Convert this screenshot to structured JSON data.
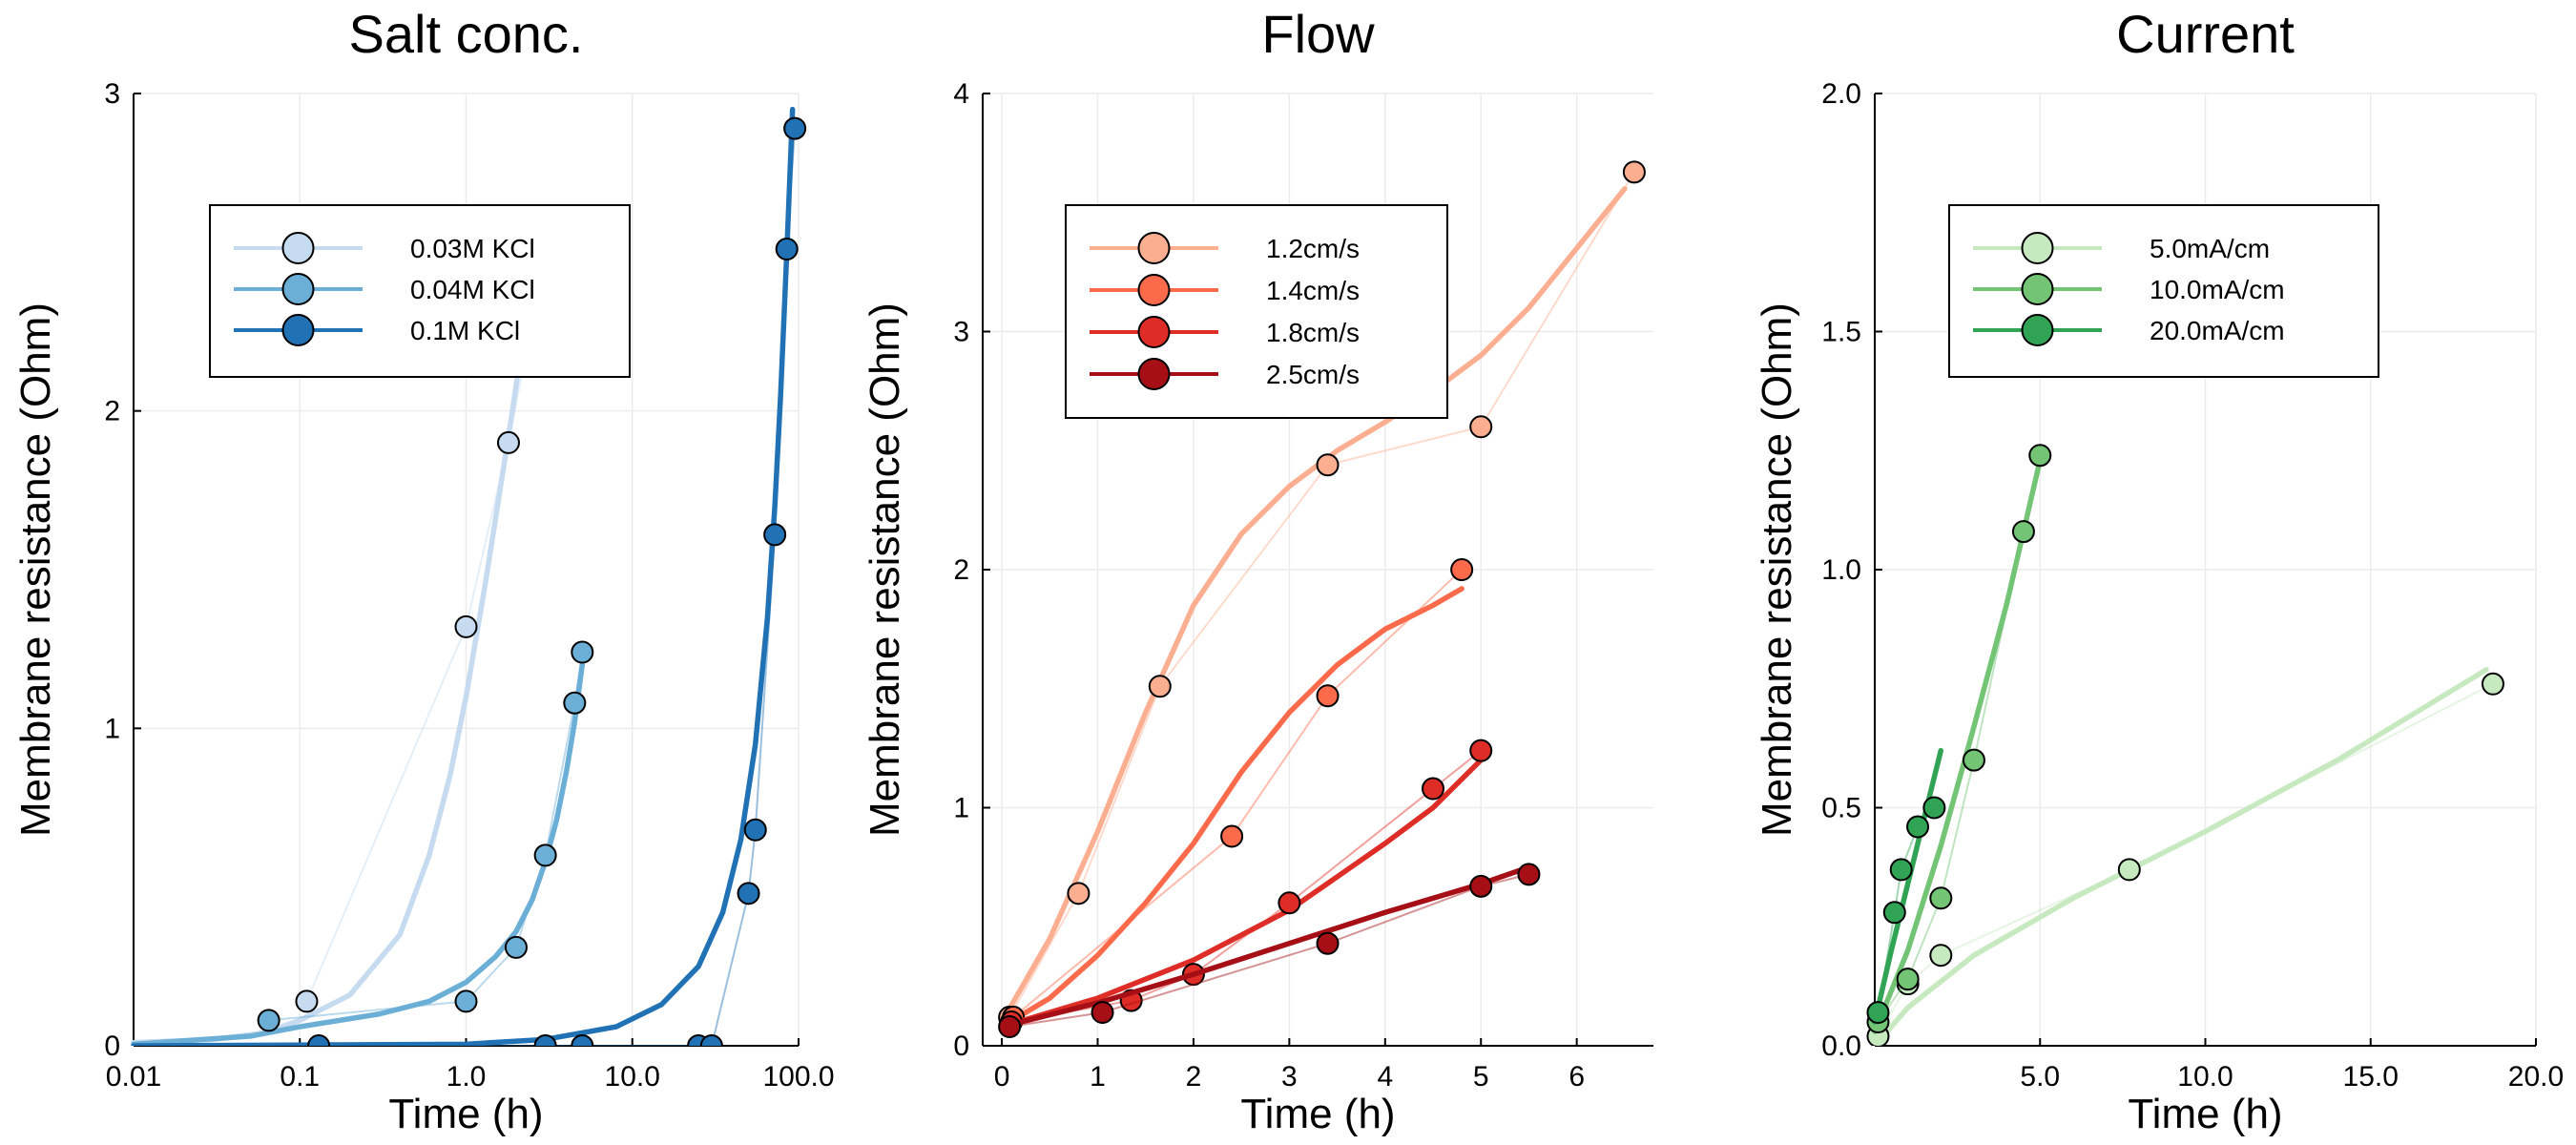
{
  "chart_data": [
    {
      "type": "scatter",
      "title": "Salt conc.",
      "xlabel": "Time (h)",
      "ylabel": "Membrane resistance (Ohm)",
      "xscale": "log",
      "xlim": [
        0.01,
        100
      ],
      "ylim": [
        0,
        3
      ],
      "xticks": [
        0.01,
        0.1,
        1,
        10,
        100
      ],
      "xtick_labels": [
        "0.01",
        "0.1",
        "1.0",
        "10.0",
        "100.0"
      ],
      "yticks": [
        0,
        1,
        2,
        3
      ],
      "ytick_labels": [
        "0",
        "1",
        "2",
        "3"
      ],
      "grid": true,
      "legend_position": "top-left",
      "series": [
        {
          "name": "0.03M KCl",
          "color": "#c6dbef",
          "points": [
            [
              0.11,
              0.14
            ],
            [
              1.0,
              1.32
            ],
            [
              1.8,
              1.9
            ],
            [
              3.0,
              2.5
            ]
          ],
          "fit": [
            [
              0.01,
              0.01
            ],
            [
              0.03,
              0.02
            ],
            [
              0.06,
              0.04
            ],
            [
              0.1,
              0.08
            ],
            [
              0.2,
              0.16
            ],
            [
              0.4,
              0.35
            ],
            [
              0.6,
              0.6
            ],
            [
              0.8,
              0.85
            ],
            [
              1.0,
              1.1
            ],
            [
              1.3,
              1.45
            ],
            [
              1.6,
              1.75
            ],
            [
              1.9,
              2.0
            ],
            [
              2.3,
              2.3
            ]
          ]
        },
        {
          "name": "0.04M KCl",
          "color": "#6baed6",
          "points": [
            [
              0.065,
              0.08
            ],
            [
              1.0,
              0.14
            ],
            [
              2.0,
              0.31
            ],
            [
              3.0,
              0.6
            ],
            [
              4.5,
              1.08
            ],
            [
              5.0,
              1.24
            ]
          ],
          "fit": [
            [
              0.01,
              0.005
            ],
            [
              0.05,
              0.03
            ],
            [
              0.1,
              0.06
            ],
            [
              0.3,
              0.1
            ],
            [
              0.6,
              0.14
            ],
            [
              1.0,
              0.2
            ],
            [
              1.5,
              0.28
            ],
            [
              2.0,
              0.36
            ],
            [
              2.5,
              0.46
            ],
            [
              3.0,
              0.58
            ],
            [
              3.5,
              0.71
            ],
            [
              4.0,
              0.86
            ],
            [
              4.5,
              1.02
            ],
            [
              5.0,
              1.2
            ]
          ]
        },
        {
          "name": "0.1M KCl",
          "color": "#2171b5",
          "points": [
            [
              0.13,
              0.0
            ],
            [
              3.0,
              0.0
            ],
            [
              5.0,
              0.0
            ],
            [
              25,
              0.0
            ],
            [
              30,
              0.0
            ],
            [
              50,
              0.48
            ],
            [
              55,
              0.68
            ],
            [
              72,
              1.61
            ],
            [
              85,
              2.51
            ],
            [
              95,
              2.89
            ]
          ],
          "fit": [
            [
              0.01,
              0.0
            ],
            [
              1,
              0.005
            ],
            [
              3,
              0.02
            ],
            [
              8,
              0.06
            ],
            [
              15,
              0.13
            ],
            [
              25,
              0.25
            ],
            [
              35,
              0.42
            ],
            [
              45,
              0.65
            ],
            [
              55,
              0.95
            ],
            [
              65,
              1.35
            ],
            [
              72,
              1.7
            ],
            [
              78,
              2.05
            ],
            [
              85,
              2.5
            ],
            [
              92,
              2.95
            ]
          ]
        }
      ]
    },
    {
      "type": "scatter",
      "title": "Flow",
      "xlabel": "Time (h)",
      "ylabel": "Membrane resistance (Ohm)",
      "xlim": [
        -0.2,
        6.8
      ],
      "ylim": [
        0,
        4
      ],
      "xticks": [
        0,
        1,
        2,
        3,
        4,
        5,
        6
      ],
      "xtick_labels": [
        "0",
        "1",
        "2",
        "3",
        "4",
        "5",
        "6"
      ],
      "yticks": [
        0,
        1,
        2,
        3,
        4
      ],
      "ytick_labels": [
        "0",
        "1",
        "2",
        "3",
        "4"
      ],
      "grid": true,
      "legend_position": "top-left",
      "series": [
        {
          "name": "1.2cm/s",
          "color": "#fcae91",
          "points": [
            [
              0.08,
              0.12
            ],
            [
              0.8,
              0.64
            ],
            [
              1.65,
              1.51
            ],
            [
              3.4,
              2.44
            ],
            [
              5.0,
              2.6
            ],
            [
              6.6,
              3.67
            ]
          ],
          "fit": [
            [
              0.0,
              0.1
            ],
            [
              0.5,
              0.45
            ],
            [
              1.0,
              0.9
            ],
            [
              1.5,
              1.4
            ],
            [
              2.0,
              1.85
            ],
            [
              2.5,
              2.15
            ],
            [
              3.0,
              2.35
            ],
            [
              3.5,
              2.5
            ],
            [
              4.0,
              2.62
            ],
            [
              4.5,
              2.75
            ],
            [
              5.0,
              2.9
            ],
            [
              5.5,
              3.1
            ],
            [
              6.0,
              3.35
            ],
            [
              6.5,
              3.6
            ]
          ]
        },
        {
          "name": "1.4cm/s",
          "color": "#fb6a4a",
          "points": [
            [
              0.12,
              0.12
            ],
            [
              2.4,
              0.88
            ],
            [
              3.4,
              1.47
            ],
            [
              4.8,
              2.0
            ]
          ],
          "fit": [
            [
              0.0,
              0.08
            ],
            [
              0.5,
              0.2
            ],
            [
              1.0,
              0.38
            ],
            [
              1.5,
              0.6
            ],
            [
              2.0,
              0.85
            ],
            [
              2.5,
              1.15
            ],
            [
              3.0,
              1.4
            ],
            [
              3.5,
              1.6
            ],
            [
              4.0,
              1.75
            ],
            [
              4.5,
              1.85
            ],
            [
              4.8,
              1.92
            ]
          ]
        },
        {
          "name": "1.8cm/s",
          "color": "#de2d26",
          "points": [
            [
              0.1,
              0.1
            ],
            [
              1.35,
              0.19
            ],
            [
              2.0,
              0.3
            ],
            [
              3.0,
              0.6
            ],
            [
              4.5,
              1.08
            ],
            [
              5.0,
              1.24
            ]
          ],
          "fit": [
            [
              0.0,
              0.08
            ],
            [
              1.0,
              0.2
            ],
            [
              2.0,
              0.36
            ],
            [
              3.0,
              0.57
            ],
            [
              4.0,
              0.85
            ],
            [
              4.5,
              1.0
            ],
            [
              5.0,
              1.2
            ]
          ]
        },
        {
          "name": "2.5cm/s",
          "color": "#a50f15",
          "points": [
            [
              0.08,
              0.08
            ],
            [
              1.05,
              0.14
            ],
            [
              3.4,
              0.43
            ],
            [
              5.0,
              0.67
            ],
            [
              5.5,
              0.72
            ]
          ],
          "fit": [
            [
              0.0,
              0.08
            ],
            [
              1.0,
              0.18
            ],
            [
              2.0,
              0.3
            ],
            [
              3.0,
              0.43
            ],
            [
              4.0,
              0.56
            ],
            [
              5.0,
              0.68
            ],
            [
              5.5,
              0.75
            ]
          ]
        }
      ]
    },
    {
      "type": "scatter",
      "title": "Current",
      "xlabel": "Time (h)",
      "ylabel": "Membrane resistance (Ohm)",
      "xlim": [
        0,
        20
      ],
      "ylim": [
        0,
        2
      ],
      "xticks": [
        5,
        10,
        15,
        20
      ],
      "xtick_labels": [
        "5.0",
        "10.0",
        "15.0",
        "20.0"
      ],
      "yticks": [
        0,
        0.5,
        1,
        1.5,
        2
      ],
      "ytick_labels": [
        "0.0",
        "0.5",
        "1.0",
        "1.5",
        "2.0"
      ],
      "grid": true,
      "legend_position": "top-left",
      "series": [
        {
          "name": "5.0mA/cm",
          "color": "#c7e9c0",
          "points": [
            [
              0.1,
              0.02
            ],
            [
              1.0,
              0.13
            ],
            [
              2.0,
              0.19
            ],
            [
              7.7,
              0.37
            ],
            [
              18.7,
              0.76
            ]
          ],
          "fit": [
            [
              0.0,
              0.0
            ],
            [
              1.0,
              0.08
            ],
            [
              3.0,
              0.19
            ],
            [
              6.0,
              0.31
            ],
            [
              10.0,
              0.45
            ],
            [
              14.0,
              0.6
            ],
            [
              18.5,
              0.79
            ]
          ]
        },
        {
          "name": "10.0mA/cm",
          "color": "#74c476",
          "points": [
            [
              0.1,
              0.05
            ],
            [
              1.0,
              0.14
            ],
            [
              2.0,
              0.31
            ],
            [
              3.0,
              0.6
            ],
            [
              4.5,
              1.08
            ],
            [
              5.0,
              1.24
            ]
          ],
          "fit": [
            [
              0.0,
              0.03
            ],
            [
              1.0,
              0.2
            ],
            [
              2.0,
              0.42
            ],
            [
              3.0,
              0.67
            ],
            [
              4.0,
              0.93
            ],
            [
              5.0,
              1.23
            ]
          ]
        },
        {
          "name": "20.0mA/cm",
          "color": "#31a354",
          "points": [
            [
              0.1,
              0.07
            ],
            [
              0.6,
              0.28
            ],
            [
              0.8,
              0.37
            ],
            [
              1.3,
              0.46
            ],
            [
              1.8,
              0.5
            ]
          ],
          "fit": [
            [
              0.0,
              0.05
            ],
            [
              0.5,
              0.2
            ],
            [
              1.0,
              0.34
            ],
            [
              1.5,
              0.48
            ],
            [
              2.0,
              0.62
            ]
          ]
        }
      ]
    }
  ]
}
